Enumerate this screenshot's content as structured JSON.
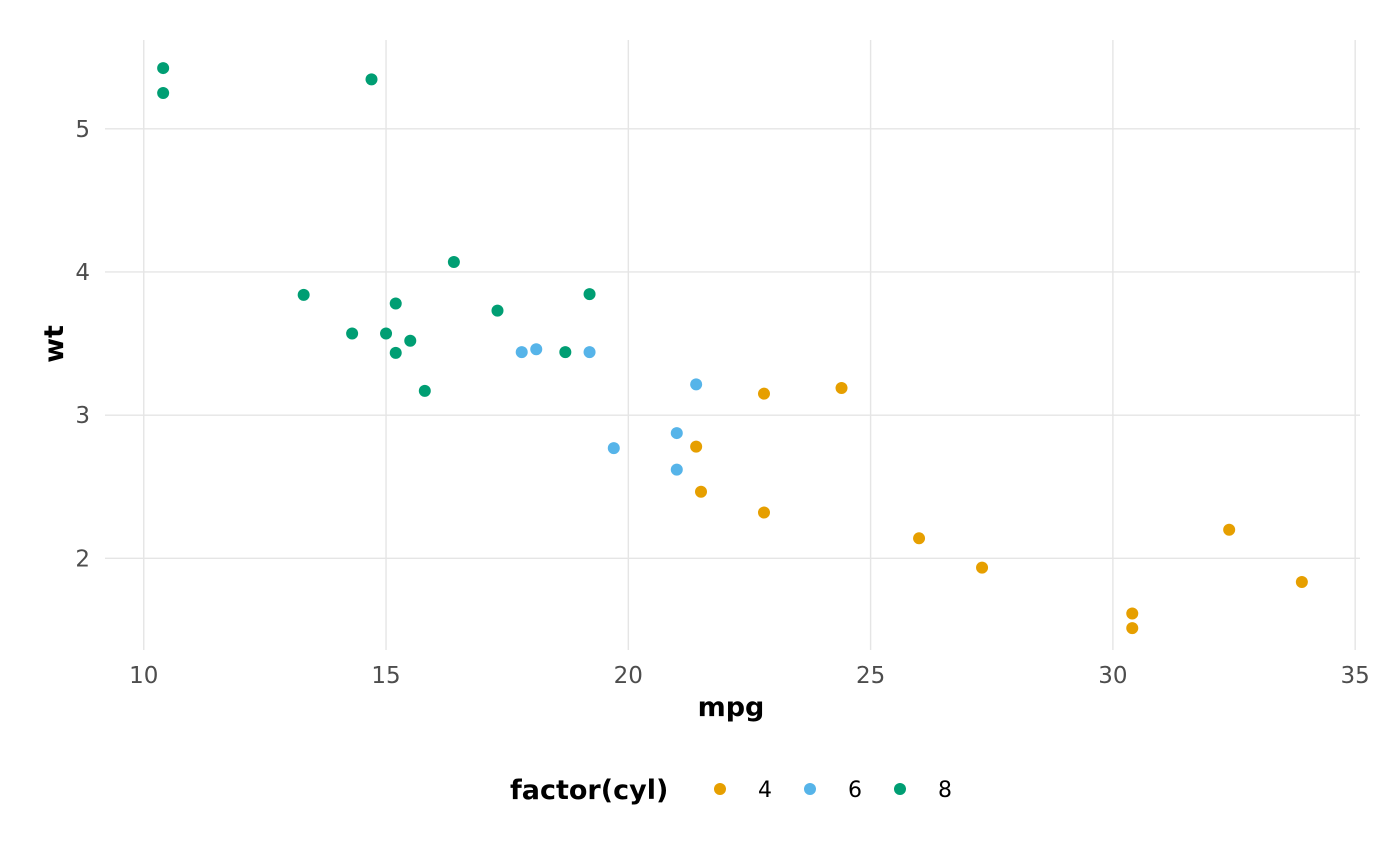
{
  "chart_data": {
    "type": "scatter",
    "title": "",
    "xlabel": "mpg",
    "ylabel": "wt",
    "xlim": [
      9.2,
      35.1
    ],
    "ylim": [
      1.36,
      5.62
    ],
    "x_ticks": [
      10,
      15,
      20,
      25,
      30,
      35
    ],
    "y_ticks": [
      2,
      3,
      4,
      5
    ],
    "grid": true,
    "legend_title": "factor(cyl)",
    "legend_position": "bottom",
    "series": [
      {
        "name": "4",
        "color": "#E69F00",
        "points": [
          {
            "x": 22.8,
            "y": 2.32
          },
          {
            "x": 24.4,
            "y": 3.19
          },
          {
            "x": 22.8,
            "y": 3.15
          },
          {
            "x": 32.4,
            "y": 2.2
          },
          {
            "x": 30.4,
            "y": 1.615
          },
          {
            "x": 33.9,
            "y": 1.835
          },
          {
            "x": 21.5,
            "y": 2.465
          },
          {
            "x": 27.3,
            "y": 1.935
          },
          {
            "x": 26.0,
            "y": 2.14
          },
          {
            "x": 30.4,
            "y": 1.513
          },
          {
            "x": 21.4,
            "y": 2.78
          }
        ]
      },
      {
        "name": "6",
        "color": "#56B4E9",
        "points": [
          {
            "x": 21.0,
            "y": 2.62
          },
          {
            "x": 21.0,
            "y": 2.875
          },
          {
            "x": 21.4,
            "y": 3.215
          },
          {
            "x": 18.1,
            "y": 3.46
          },
          {
            "x": 19.2,
            "y": 3.44
          },
          {
            "x": 17.8,
            "y": 3.44
          },
          {
            "x": 19.7,
            "y": 2.77
          }
        ]
      },
      {
        "name": "8",
        "color": "#009E73",
        "points": [
          {
            "x": 18.7,
            "y": 3.44
          },
          {
            "x": 14.3,
            "y": 3.57
          },
          {
            "x": 16.4,
            "y": 4.07
          },
          {
            "x": 17.3,
            "y": 3.73
          },
          {
            "x": 15.2,
            "y": 3.78
          },
          {
            "x": 10.4,
            "y": 5.25
          },
          {
            "x": 10.4,
            "y": 5.424
          },
          {
            "x": 14.7,
            "y": 5.345
          },
          {
            "x": 15.5,
            "y": 3.52
          },
          {
            "x": 15.2,
            "y": 3.435
          },
          {
            "x": 13.3,
            "y": 3.84
          },
          {
            "x": 19.2,
            "y": 3.845
          },
          {
            "x": 15.8,
            "y": 3.17
          },
          {
            "x": 15.0,
            "y": 3.57
          }
        ]
      }
    ]
  }
}
